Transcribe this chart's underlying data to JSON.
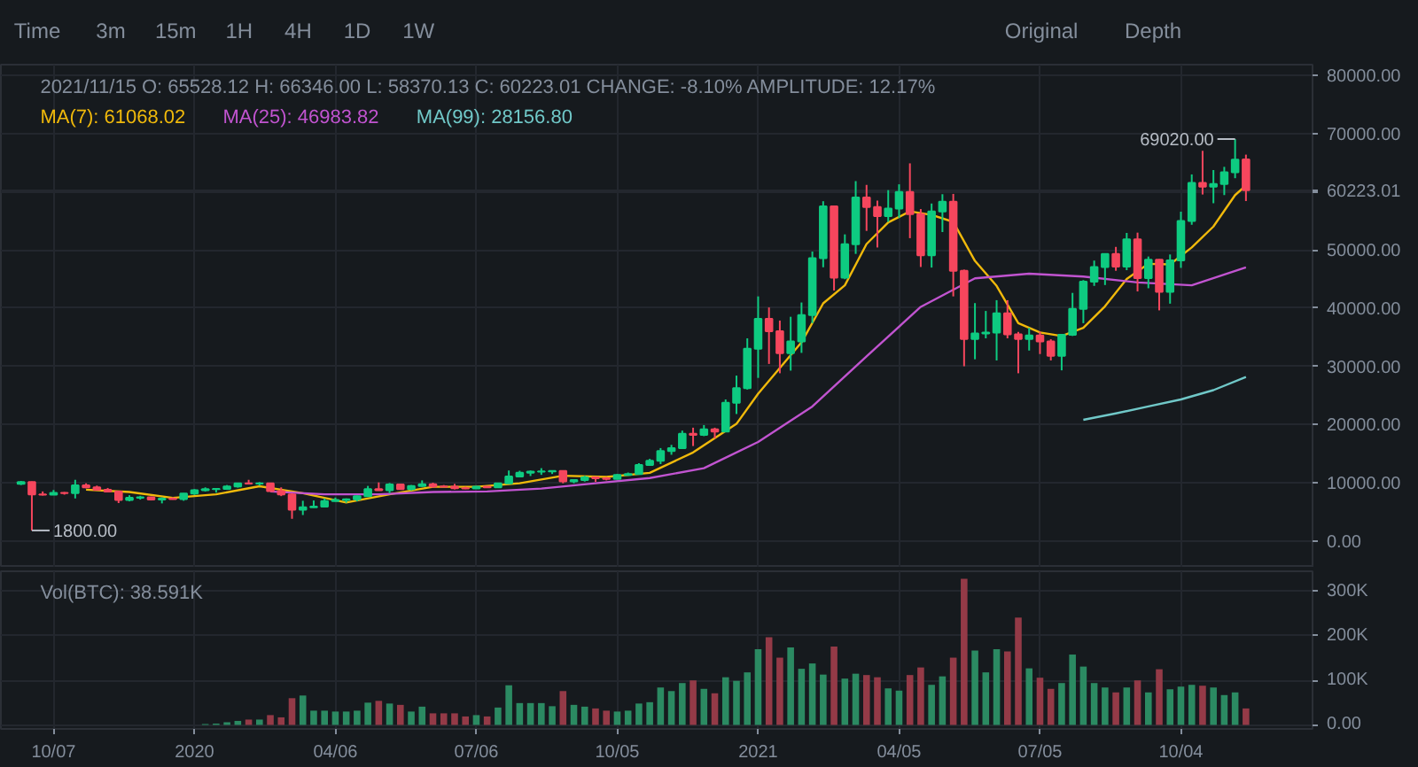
{
  "chart_data": [
    {
      "type": "candlestick",
      "xlim": [
        "2019-09-03",
        "2021-12-28"
      ],
      "ylim": [
        -4600,
        81800
      ],
      "yticks": [
        {
          "value": 0,
          "label": "0.00"
        },
        {
          "value": 10000,
          "label": "10000.00"
        },
        {
          "value": 20000,
          "label": "20000.00"
        },
        {
          "value": 30000,
          "label": "30000.00"
        },
        {
          "value": 40000,
          "label": "40000.00"
        },
        {
          "value": 50000,
          "label": "50000.00"
        },
        {
          "value": 60000,
          "label": null
        },
        {
          "value": 60223.01,
          "label": "60223.01"
        },
        {
          "value": 70000,
          "label": "70000.00"
        },
        {
          "value": 80000,
          "label": "80000.00"
        }
      ],
      "xticks": [
        {
          "value": "2019-10-07",
          "label": null
        },
        {
          "value": "2020-01-06",
          "label": null
        },
        {
          "value": "2020-04-06",
          "label": null
        },
        {
          "value": "2020-07-06",
          "label": null
        },
        {
          "value": "2020-10-05",
          "label": null
        },
        {
          "value": "2021-01-04",
          "label": null
        },
        {
          "value": "2021-04-05",
          "label": null
        },
        {
          "value": "2021-07-05",
          "label": null
        },
        {
          "value": "2021-10-04",
          "label": null
        }
      ],
      "tick_labels": "y",
      "grid": true,
      "legend": "top left",
      "x": [
        "2019-09-16",
        "2019-09-23",
        "2019-09-30",
        "2019-10-07",
        "2019-10-14",
        "2019-10-21",
        "2019-10-28",
        "2019-11-04",
        "2019-11-11",
        "2019-11-18",
        "2019-11-25",
        "2019-12-02",
        "2019-12-09",
        "2019-12-16",
        "2019-12-23",
        "2019-12-30",
        "2020-01-06",
        "2020-01-13",
        "2020-01-20",
        "2020-01-27",
        "2020-02-03",
        "2020-02-10",
        "2020-02-17",
        "2020-02-24",
        "2020-03-02",
        "2020-03-09",
        "2020-03-16",
        "2020-03-23",
        "2020-03-30",
        "2020-04-06",
        "2020-04-13",
        "2020-04-20",
        "2020-04-27",
        "2020-05-04",
        "2020-05-11",
        "2020-05-18",
        "2020-05-25",
        "2020-06-01",
        "2020-06-08",
        "2020-06-15",
        "2020-06-22",
        "2020-06-29",
        "2020-07-06",
        "2020-07-13",
        "2020-07-20",
        "2020-07-27",
        "2020-08-03",
        "2020-08-10",
        "2020-08-17",
        "2020-08-24",
        "2020-08-31",
        "2020-09-07",
        "2020-09-14",
        "2020-09-21",
        "2020-09-28",
        "2020-10-05",
        "2020-10-12",
        "2020-10-19",
        "2020-10-26",
        "2020-11-02",
        "2020-11-09",
        "2020-11-16",
        "2020-11-23",
        "2020-11-30",
        "2020-12-07",
        "2020-12-14",
        "2020-12-21",
        "2020-12-28",
        "2021-01-04",
        "2021-01-11",
        "2021-01-18",
        "2021-01-25",
        "2021-02-01",
        "2021-02-08",
        "2021-02-15",
        "2021-02-22",
        "2021-03-01",
        "2021-03-08",
        "2021-03-15",
        "2021-03-22",
        "2021-03-29",
        "2021-04-05",
        "2021-04-12",
        "2021-04-19",
        "2021-04-26",
        "2021-05-03",
        "2021-05-10",
        "2021-05-17",
        "2021-05-24",
        "2021-05-31",
        "2021-06-07",
        "2021-06-14",
        "2021-06-21",
        "2021-06-28",
        "2021-07-05",
        "2021-07-12",
        "2021-07-19",
        "2021-07-26",
        "2021-08-02",
        "2021-08-09",
        "2021-08-16",
        "2021-08-23",
        "2021-08-30",
        "2021-09-06",
        "2021-09-13",
        "2021-09-20",
        "2021-09-27",
        "2021-10-04",
        "2021-10-11",
        "2021-10-18",
        "2021-10-25",
        "2021-11-01",
        "2021-11-08",
        "2021-11-15"
      ],
      "ohlc": [
        [
          9800,
          10300,
          9600,
          10100
        ],
        [
          10100,
          10200,
          1800,
          8000
        ],
        [
          8000,
          8500,
          7800,
          7950
        ],
        [
          7950,
          8750,
          7900,
          8250
        ],
        [
          8250,
          8400,
          7950,
          8200
        ],
        [
          8200,
          10500,
          7300,
          9550
        ],
        [
          9550,
          9900,
          9050,
          9200
        ],
        [
          9200,
          9500,
          8700,
          8800
        ],
        [
          8800,
          9100,
          8400,
          8500
        ],
        [
          8500,
          8600,
          6500,
          7050
        ],
        [
          7050,
          7850,
          6800,
          7400
        ],
        [
          7400,
          7750,
          7100,
          7500
        ],
        [
          7500,
          7600,
          6950,
          7100
        ],
        [
          7100,
          7500,
          6450,
          7250
        ],
        [
          7250,
          7500,
          7100,
          7200
        ],
        [
          7200,
          8200,
          6900,
          8150
        ],
        [
          8150,
          8900,
          7900,
          8700
        ],
        [
          8700,
          9200,
          8500,
          8900
        ],
        [
          8900,
          9000,
          8300,
          8950
        ],
        [
          8950,
          9600,
          8900,
          9350
        ],
        [
          9350,
          9900,
          9150,
          9900
        ],
        [
          9900,
          10500,
          9700,
          9850
        ],
        [
          9850,
          10100,
          9500,
          9900
        ],
        [
          9900,
          9950,
          8500,
          8550
        ],
        [
          8550,
          9200,
          7700,
          8000
        ],
        [
          8000,
          8200,
          3800,
          5350
        ],
        [
          5350,
          6900,
          4450,
          5800
        ],
        [
          5800,
          6950,
          5700,
          5900
        ],
        [
          5900,
          7300,
          5850,
          6850
        ],
        [
          6850,
          7450,
          6750,
          7050
        ],
        [
          7050,
          7300,
          6550,
          7150
        ],
        [
          7150,
          7800,
          6800,
          7700
        ],
        [
          7700,
          9450,
          7600,
          8900
        ],
        [
          8900,
          10050,
          8650,
          8700
        ],
        [
          8700,
          9950,
          8200,
          9700
        ],
        [
          9700,
          9850,
          8800,
          8900
        ],
        [
          8900,
          9600,
          8650,
          9450
        ],
        [
          9450,
          10400,
          9300,
          9750
        ],
        [
          9750,
          10000,
          9100,
          9350
        ],
        [
          9350,
          9600,
          9250,
          9300
        ],
        [
          9300,
          9800,
          8850,
          9050
        ],
        [
          9050,
          9300,
          8900,
          9000
        ],
        [
          9000,
          9450,
          8950,
          9300
        ],
        [
          9300,
          9350,
          9100,
          9200
        ],
        [
          9200,
          9950,
          9150,
          9900
        ],
        [
          9900,
          12100,
          9900,
          11050
        ],
        [
          11050,
          12050,
          10950,
          11700
        ],
        [
          11700,
          12100,
          11150,
          11900
        ],
        [
          11900,
          12500,
          11350,
          11950
        ],
        [
          11950,
          12100,
          11500,
          12000
        ],
        [
          12000,
          12050,
          9900,
          10250
        ],
        [
          10250,
          10600,
          9900,
          10450
        ],
        [
          10450,
          11200,
          10200,
          10900
        ],
        [
          10900,
          10950,
          10150,
          10750
        ],
        [
          10750,
          10950,
          10400,
          10650
        ],
        [
          10650,
          11500,
          10550,
          11350
        ],
        [
          11350,
          11750,
          11200,
          11500
        ],
        [
          11500,
          13350,
          11400,
          13050
        ],
        [
          13050,
          14100,
          12950,
          13750
        ],
        [
          13750,
          15950,
          13200,
          15450
        ],
        [
          15450,
          16500,
          14800,
          15950
        ],
        [
          15950,
          18950,
          15800,
          18400
        ],
        [
          18400,
          19450,
          16300,
          18200
        ],
        [
          18200,
          19900,
          18000,
          19150
        ],
        [
          19150,
          19450,
          17600,
          18800
        ],
        [
          18800,
          24300,
          18750,
          23750
        ],
        [
          23750,
          28400,
          21800,
          26250
        ],
        [
          26250,
          34800,
          26000,
          33000
        ],
        [
          33000,
          42000,
          28000,
          38150
        ],
        [
          38150,
          40100,
          30400,
          36000
        ],
        [
          36000,
          37850,
          28800,
          32250
        ],
        [
          32250,
          38500,
          29250,
          34250
        ],
        [
          34250,
          40950,
          32300,
          38800
        ],
        [
          38800,
          49700,
          37400,
          48550
        ],
        [
          48550,
          58350,
          47000,
          57450
        ],
        [
          57450,
          57550,
          43000,
          45200
        ],
        [
          45200,
          52650,
          44950,
          50950
        ],
        [
          50950,
          61800,
          49300,
          59000
        ],
        [
          59000,
          61150,
          53250,
          57350
        ],
        [
          57350,
          58450,
          50400,
          55800
        ],
        [
          55800,
          60250,
          54800,
          57100
        ],
        [
          57100,
          61250,
          55500,
          59950
        ],
        [
          59950,
          64850,
          52000,
          56150
        ],
        [
          56150,
          57000,
          47050,
          49050
        ],
        [
          49050,
          57950,
          46950,
          56600
        ],
        [
          56600,
          59550,
          53050,
          58250
        ],
        [
          58250,
          59600,
          42000,
          46400
        ],
        [
          46400,
          46600,
          30000,
          34700
        ],
        [
          34700,
          40850,
          31200,
          35650
        ],
        [
          35650,
          39500,
          34800,
          35800
        ],
        [
          35800,
          41350,
          31000,
          39100
        ],
        [
          39100,
          41350,
          34800,
          35500
        ],
        [
          35500,
          35900,
          28800,
          34700
        ],
        [
          34700,
          36600,
          32700,
          35300
        ],
        [
          35300,
          35950,
          32100,
          34250
        ],
        [
          34250,
          34650,
          31000,
          31800
        ],
        [
          31800,
          35400,
          29300,
          35400
        ],
        [
          35400,
          42600,
          35200,
          39850
        ],
        [
          39850,
          44800,
          37400,
          44550
        ],
        [
          44550,
          48150,
          43800,
          47050
        ],
        [
          47050,
          49400,
          43950,
          49300
        ],
        [
          49300,
          50500,
          46400,
          47100
        ],
        [
          47100,
          52900,
          46500,
          51800
        ],
        [
          51800,
          52950,
          42850,
          45150
        ],
        [
          45150,
          48850,
          43400,
          48300
        ],
        [
          48300,
          48400,
          39600,
          42800
        ],
        [
          42800,
          49200,
          40750,
          48200
        ],
        [
          48200,
          56550,
          46900,
          54950
        ],
        [
          54950,
          62950,
          54300,
          61500
        ],
        [
          61500,
          67000,
          59500,
          60850
        ],
        [
          60850,
          63700,
          58000,
          61300
        ],
        [
          61300,
          64250,
          59400,
          63300
        ],
        [
          63300,
          69020,
          62300,
          65500
        ],
        [
          65528.12,
          66346.0,
          58370.13,
          60223.01
        ]
      ],
      "colors": [
        "#0ecb81",
        "#f6465d",
        "#f6465d",
        "#0ecb81",
        "#f6465d",
        "#0ecb81",
        "#f6465d",
        "#f6465d",
        "#f6465d",
        "#f6465d",
        "#0ecb81",
        "#0ecb81",
        "#f6465d",
        "#0ecb81",
        "#f6465d",
        "#0ecb81",
        "#0ecb81",
        "#0ecb81",
        "#0ecb81",
        "#0ecb81",
        "#0ecb81",
        "#f6465d",
        "#0ecb81",
        "#f6465d",
        "#f6465d",
        "#f6465d",
        "#0ecb81",
        "#0ecb81",
        "#0ecb81",
        "#0ecb81",
        "#0ecb81",
        "#0ecb81",
        "#0ecb81",
        "#f6465d",
        "#0ecb81",
        "#f6465d",
        "#0ecb81",
        "#0ecb81",
        "#f6465d",
        "#f6465d",
        "#f6465d",
        "#f6465d",
        "#0ecb81",
        "#f6465d",
        "#0ecb81",
        "#0ecb81",
        "#0ecb81",
        "#0ecb81",
        "#0ecb81",
        "#0ecb81",
        "#f6465d",
        "#0ecb81",
        "#0ecb81",
        "#f6465d",
        "#f6465d",
        "#0ecb81",
        "#0ecb81",
        "#0ecb81",
        "#0ecb81",
        "#0ecb81",
        "#0ecb81",
        "#0ecb81",
        "#f6465d",
        "#0ecb81",
        "#f6465d",
        "#0ecb81",
        "#0ecb81",
        "#0ecb81",
        "#0ecb81",
        "#f6465d",
        "#f6465d",
        "#0ecb81",
        "#0ecb81",
        "#0ecb81",
        "#0ecb81",
        "#f6465d",
        "#0ecb81",
        "#0ecb81",
        "#f6465d",
        "#f6465d",
        "#0ecb81",
        "#0ecb81",
        "#f6465d",
        "#f6465d",
        "#0ecb81",
        "#0ecb81",
        "#f6465d",
        "#f6465d",
        "#0ecb81",
        "#0ecb81",
        "#0ecb81",
        "#f6465d",
        "#f6465d",
        "#0ecb81",
        "#f6465d",
        "#f6465d",
        "#0ecb81",
        "#0ecb81",
        "#0ecb81",
        "#0ecb81",
        "#0ecb81",
        "#f6465d",
        "#0ecb81",
        "#f6465d",
        "#0ecb81",
        "#f6465d",
        "#0ecb81",
        "#0ecb81",
        "#0ecb81",
        "#f6465d",
        "#0ecb81",
        "#0ecb81",
        "#0ecb81",
        "#f6465d"
      ],
      "series": [
        {
          "type": "line",
          "name": "MA(7): 61068.02",
          "color": "#f0b90b",
          "x": [
            "2019-10-28",
            "2019-11-25",
            "2019-12-23",
            "2020-01-20",
            "2020-02-17",
            "2020-03-16",
            "2020-04-13",
            "2020-05-11",
            "2020-06-08",
            "2020-07-06",
            "2020-08-03",
            "2020-08-31",
            "2020-09-28",
            "2020-10-26",
            "2020-11-23",
            "2020-12-21",
            "2021-01-04",
            "2021-01-18",
            "2021-02-01",
            "2021-02-15",
            "2021-03-01",
            "2021-03-15",
            "2021-03-29",
            "2021-04-12",
            "2021-04-26",
            "2021-05-10",
            "2021-05-24",
            "2021-06-07",
            "2021-06-21",
            "2021-07-05",
            "2021-07-19",
            "2021-08-02",
            "2021-08-16",
            "2021-08-30",
            "2021-09-13",
            "2021-09-27",
            "2021-10-11",
            "2021-10-25",
            "2021-11-08",
            "2021-11-15"
          ],
          "values": [
            8800,
            8400,
            7400,
            8000,
            9400,
            8200,
            6600,
            8000,
            9300,
            9300,
            9900,
            11200,
            11000,
            11700,
            15200,
            20100,
            25300,
            29700,
            34100,
            40800,
            43900,
            51000,
            54700,
            56600,
            56000,
            54800,
            48100,
            43800,
            37400,
            35800,
            35200,
            36600,
            40300,
            45000,
            47600,
            47500,
            50400,
            54000,
            59400,
            61068.02
          ]
        },
        {
          "type": "line",
          "name": "MA(25): 46983.82",
          "color": "#c154d0",
          "x": [
            "2020-02-24",
            "2020-03-30",
            "2020-05-04",
            "2020-06-08",
            "2020-07-13",
            "2020-08-17",
            "2020-09-21",
            "2020-10-26",
            "2020-11-30",
            "2021-01-04",
            "2021-02-08",
            "2021-03-15",
            "2021-04-19",
            "2021-05-24",
            "2021-06-28",
            "2021-08-02",
            "2021-09-06",
            "2021-10-11",
            "2021-11-15"
          ],
          "values": [
            8500,
            8000,
            8000,
            8400,
            8500,
            9000,
            9900,
            10800,
            12500,
            17000,
            23100,
            31700,
            40200,
            45100,
            45900,
            45400,
            44400,
            43900,
            46983.82
          ]
        },
        {
          "type": "line",
          "name": "MA(99): 28156.80",
          "color": "#70c8c8",
          "x": [
            "2021-08-02",
            "2021-08-23",
            "2021-09-13",
            "2021-10-04",
            "2021-10-25",
            "2021-11-15"
          ],
          "values": [
            20800,
            21900,
            23100,
            24300,
            25900,
            28156.8
          ]
        }
      ],
      "annotations": [
        "2021/11/15 O: 65528.12 H: 66346.00 L: 58370.13 C: 60223.01 CHANGE: -8.10% AMPLITUDE: 12.17%",
        "Time",
        "3m",
        "15m",
        "1H",
        "4H",
        "1D",
        "1W",
        "Original",
        "Depth",
        {
          "text": "69020.00",
          "x": "2021-11-08",
          "y": 69020
        },
        {
          "text": "1800.00",
          "x": "2019-09-23",
          "y": 1800
        }
      ]
    },
    {
      "type": "bar",
      "title": "Vol(BTC): 38.591K",
      "xlim": [
        "2019-09-03",
        "2021-12-28"
      ],
      "ylim": [
        -9000,
        345000
      ],
      "yticks": [
        {
          "value": 0,
          "label": "0.00"
        },
        {
          "value": 100000,
          "label": "100K"
        },
        {
          "value": 200000,
          "label": "200K"
        },
        {
          "value": 300000,
          "label": "300K"
        }
      ],
      "xticks": [
        {
          "value": "2019-10-07",
          "label": "10/07"
        },
        {
          "value": "2020-01-06",
          "label": "2020"
        },
        {
          "value": "2020-04-06",
          "label": "04/06"
        },
        {
          "value": "2020-07-06",
          "label": "07/06"
        },
        {
          "value": "2020-10-05",
          "label": "10/05"
        },
        {
          "value": "2021-01-04",
          "label": "2021"
        },
        {
          "value": "2021-04-05",
          "label": "04/05"
        },
        {
          "value": "2021-07-05",
          "label": "07/05"
        },
        {
          "value": "2021-10-04",
          "label": "10/04"
        }
      ],
      "grid": true,
      "x": [
        "2019-09-16",
        "2019-09-23",
        "2019-09-30",
        "2019-10-07",
        "2019-10-14",
        "2019-10-21",
        "2019-10-28",
        "2019-11-04",
        "2019-11-11",
        "2019-11-18",
        "2019-11-25",
        "2019-12-02",
        "2019-12-09",
        "2019-12-16",
        "2019-12-23",
        "2019-12-30",
        "2020-01-06",
        "2020-01-13",
        "2020-01-20",
        "2020-01-27",
        "2020-02-03",
        "2020-02-10",
        "2020-02-17",
        "2020-02-24",
        "2020-03-02",
        "2020-03-09",
        "2020-03-16",
        "2020-03-23",
        "2020-03-30",
        "2020-04-06",
        "2020-04-13",
        "2020-04-20",
        "2020-04-27",
        "2020-05-04",
        "2020-05-11",
        "2020-05-18",
        "2020-05-25",
        "2020-06-01",
        "2020-06-08",
        "2020-06-15",
        "2020-06-22",
        "2020-06-29",
        "2020-07-06",
        "2020-07-13",
        "2020-07-20",
        "2020-07-27",
        "2020-08-03",
        "2020-08-10",
        "2020-08-17",
        "2020-08-24",
        "2020-08-31",
        "2020-09-07",
        "2020-09-14",
        "2020-09-21",
        "2020-09-28",
        "2020-10-05",
        "2020-10-12",
        "2020-10-19",
        "2020-10-26",
        "2020-11-02",
        "2020-11-09",
        "2020-11-16",
        "2020-11-23",
        "2020-11-30",
        "2020-12-07",
        "2020-12-14",
        "2020-12-21",
        "2020-12-28",
        "2021-01-04",
        "2021-01-11",
        "2021-01-18",
        "2021-01-25",
        "2021-02-01",
        "2021-02-08",
        "2021-02-15",
        "2021-02-22",
        "2021-03-01",
        "2021-03-08",
        "2021-03-15",
        "2021-03-22",
        "2021-03-29",
        "2021-04-05",
        "2021-04-12",
        "2021-04-19",
        "2021-04-26",
        "2021-05-03",
        "2021-05-10",
        "2021-05-17",
        "2021-05-24",
        "2021-05-31",
        "2021-06-07",
        "2021-06-14",
        "2021-06-21",
        "2021-06-28",
        "2021-07-05",
        "2021-07-12",
        "2021-07-19",
        "2021-07-26",
        "2021-08-02",
        "2021-08-09",
        "2021-08-16",
        "2021-08-23",
        "2021-08-30",
        "2021-09-06",
        "2021-09-13",
        "2021-09-20",
        "2021-09-27",
        "2021-10-04",
        "2021-10-11",
        "2021-10-18",
        "2021-10-25",
        "2021-11-01",
        "2021-11-08",
        "2021-11-15"
      ],
      "values": [
        0,
        0,
        0,
        0,
        0,
        0,
        0,
        0,
        0,
        0,
        0,
        0,
        0,
        0,
        0,
        0,
        0,
        2000,
        3000,
        6000,
        9000,
        12000,
        12000,
        22000,
        17000,
        60000,
        66000,
        32000,
        32000,
        30000,
        30000,
        32000,
        50000,
        54000,
        48000,
        45000,
        30000,
        41000,
        26000,
        26000,
        26000,
        19000,
        22000,
        19000,
        39000,
        89000,
        49000,
        49000,
        49000,
        42000,
        76000,
        45000,
        41000,
        37000,
        32000,
        30000,
        32000,
        48000,
        51000,
        84000,
        76000,
        94000,
        100000,
        81000,
        71000,
        107000,
        99000,
        118000,
        170000,
        197000,
        151000,
        174000,
        126000,
        138000,
        113000,
        176000,
        104000,
        115000,
        112000,
        107000,
        82000,
        77000,
        112000,
        129000,
        90000,
        109000,
        151000,
        328000,
        167000,
        118000,
        170000,
        165000,
        241000,
        127000,
        106000,
        81000,
        94000,
        158000,
        131000,
        94000,
        84000,
        73000,
        84000,
        100000,
        73000,
        125000,
        80000,
        86000,
        90000,
        88000,
        84000,
        67000,
        73000,
        37000
      ],
      "colors": [
        "#2b8a62",
        "#943a47",
        "#943a47",
        "#2b8a62",
        "#943a47",
        "#2b8a62",
        "#943a47",
        "#943a47",
        "#943a47",
        "#943a47",
        "#2b8a62",
        "#2b8a62",
        "#943a47",
        "#2b8a62",
        "#943a47",
        "#2b8a62",
        "#2b8a62",
        "#2b8a62",
        "#2b8a62",
        "#2b8a62",
        "#2b8a62",
        "#943a47",
        "#2b8a62",
        "#943a47",
        "#943a47",
        "#943a47",
        "#2b8a62",
        "#2b8a62",
        "#2b8a62",
        "#2b8a62",
        "#2b8a62",
        "#2b8a62",
        "#2b8a62",
        "#943a47",
        "#2b8a62",
        "#943a47",
        "#2b8a62",
        "#2b8a62",
        "#943a47",
        "#943a47",
        "#943a47",
        "#943a47",
        "#2b8a62",
        "#943a47",
        "#2b8a62",
        "#2b8a62",
        "#2b8a62",
        "#2b8a62",
        "#2b8a62",
        "#2b8a62",
        "#943a47",
        "#2b8a62",
        "#2b8a62",
        "#943a47",
        "#943a47",
        "#2b8a62",
        "#2b8a62",
        "#2b8a62",
        "#2b8a62",
        "#2b8a62",
        "#2b8a62",
        "#2b8a62",
        "#943a47",
        "#2b8a62",
        "#943a47",
        "#2b8a62",
        "#2b8a62",
        "#2b8a62",
        "#2b8a62",
        "#943a47",
        "#943a47",
        "#2b8a62",
        "#2b8a62",
        "#2b8a62",
        "#2b8a62",
        "#943a47",
        "#2b8a62",
        "#2b8a62",
        "#943a47",
        "#943a47",
        "#2b8a62",
        "#2b8a62",
        "#943a47",
        "#943a47",
        "#2b8a62",
        "#2b8a62",
        "#943a47",
        "#943a47",
        "#2b8a62",
        "#2b8a62",
        "#2b8a62",
        "#943a47",
        "#943a47",
        "#2b8a62",
        "#943a47",
        "#943a47",
        "#2b8a62",
        "#2b8a62",
        "#2b8a62",
        "#2b8a62",
        "#2b8a62",
        "#943a47",
        "#2b8a62",
        "#943a47",
        "#2b8a62",
        "#943a47",
        "#2b8a62",
        "#2b8a62",
        "#2b8a62",
        "#943a47",
        "#2b8a62",
        "#2b8a62",
        "#2b8a62",
        "#943a47"
      ]
    }
  ]
}
